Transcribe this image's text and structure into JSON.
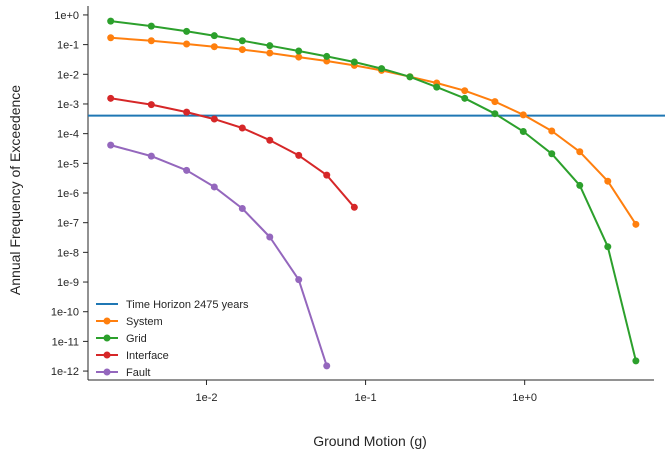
{
  "chart_data": {
    "type": "line",
    "xlabel": "Ground Motion (g)",
    "ylabel": "Annual Frequency of Exceedence",
    "xscale": "log",
    "yscale": "log",
    "xlim": [
      0.0018,
      6.5
    ],
    "ylim": [
      5e-13,
      2.0
    ],
    "x_ticks": [
      {
        "value": 0.01,
        "label": "1e-2"
      },
      {
        "value": 0.1,
        "label": "1e-1"
      },
      {
        "value": 1,
        "label": "1e+0"
      }
    ],
    "y_ticks": [
      {
        "value": 1.0,
        "label": "1e+0"
      },
      {
        "value": 0.1,
        "label": "1e-1"
      },
      {
        "value": 0.01,
        "label": "1e-2"
      },
      {
        "value": 0.001,
        "label": "1e-3"
      },
      {
        "value": 0.0001,
        "label": "1e-4"
      },
      {
        "value": 1e-05,
        "label": "1e-5"
      },
      {
        "value": 1e-06,
        "label": "1e-6"
      },
      {
        "value": 1e-07,
        "label": "1e-7"
      },
      {
        "value": 1e-08,
        "label": "1e-8"
      },
      {
        "value": 1e-09,
        "label": "1e-9"
      },
      {
        "value": 1e-10,
        "label": "1e-10"
      },
      {
        "value": 1e-11,
        "label": "1e-11"
      },
      {
        "value": 1e-12,
        "label": "1e-12"
      }
    ],
    "grid": false,
    "legend_position": "bottom-left",
    "horizontal_line": {
      "name": "Time Horizon 2475 years",
      "y": 0.000404,
      "color": "#1f77b4"
    },
    "series": [
      {
        "name": "System",
        "color": "#ff7f0e",
        "points": [
          [
            0.0025,
            0.17
          ],
          [
            0.0045,
            0.135
          ],
          [
            0.0075,
            0.105
          ],
          [
            0.0112,
            0.085
          ],
          [
            0.0168,
            0.068
          ],
          [
            0.025,
            0.052
          ],
          [
            0.038,
            0.038
          ],
          [
            0.057,
            0.028
          ],
          [
            0.085,
            0.02
          ],
          [
            0.126,
            0.0135
          ],
          [
            0.19,
            0.0083
          ],
          [
            0.28,
            0.0051
          ],
          [
            0.42,
            0.0028
          ],
          [
            0.65,
            0.0012
          ],
          [
            0.98,
            0.00043
          ],
          [
            1.48,
            0.000123
          ],
          [
            2.22,
            2.45e-05
          ],
          [
            3.33,
            2.5e-06
          ],
          [
            5.0,
            8.8e-08
          ]
        ]
      },
      {
        "name": "Grid",
        "color": "#2ca02c",
        "points": [
          [
            0.0025,
            0.62
          ],
          [
            0.0045,
            0.42
          ],
          [
            0.0075,
            0.28
          ],
          [
            0.0112,
            0.2
          ],
          [
            0.0168,
            0.135
          ],
          [
            0.025,
            0.092
          ],
          [
            0.038,
            0.061
          ],
          [
            0.057,
            0.04
          ],
          [
            0.085,
            0.026
          ],
          [
            0.126,
            0.0155
          ],
          [
            0.19,
            0.0082
          ],
          [
            0.28,
            0.0037
          ],
          [
            0.42,
            0.00155
          ],
          [
            0.65,
            0.00047
          ],
          [
            0.98,
            0.000118
          ],
          [
            1.48,
            2.1e-05
          ],
          [
            2.22,
            1.8e-06
          ],
          [
            3.33,
            1.55e-08
          ],
          [
            5.0,
            2.2e-12
          ]
        ]
      },
      {
        "name": "Interface",
        "color": "#d62728",
        "points": [
          [
            0.0025,
            0.00155
          ],
          [
            0.0045,
            0.00095
          ],
          [
            0.0075,
            0.00053
          ],
          [
            0.0112,
            0.00031
          ],
          [
            0.0168,
            0.000155
          ],
          [
            0.025,
            6e-05
          ],
          [
            0.038,
            1.85e-05
          ],
          [
            0.057,
            4e-06
          ],
          [
            0.085,
            3.3e-07
          ]
        ]
      },
      {
        "name": "Fault",
        "color": "#9467bd",
        "points": [
          [
            0.0025,
            4.1e-05
          ],
          [
            0.0045,
            1.75e-05
          ],
          [
            0.0075,
            5.8e-06
          ],
          [
            0.0112,
            1.6e-06
          ],
          [
            0.0168,
            3e-07
          ],
          [
            0.025,
            3.3e-08
          ],
          [
            0.038,
            1.2e-09
          ],
          [
            0.057,
            1.5e-12
          ]
        ]
      }
    ]
  }
}
